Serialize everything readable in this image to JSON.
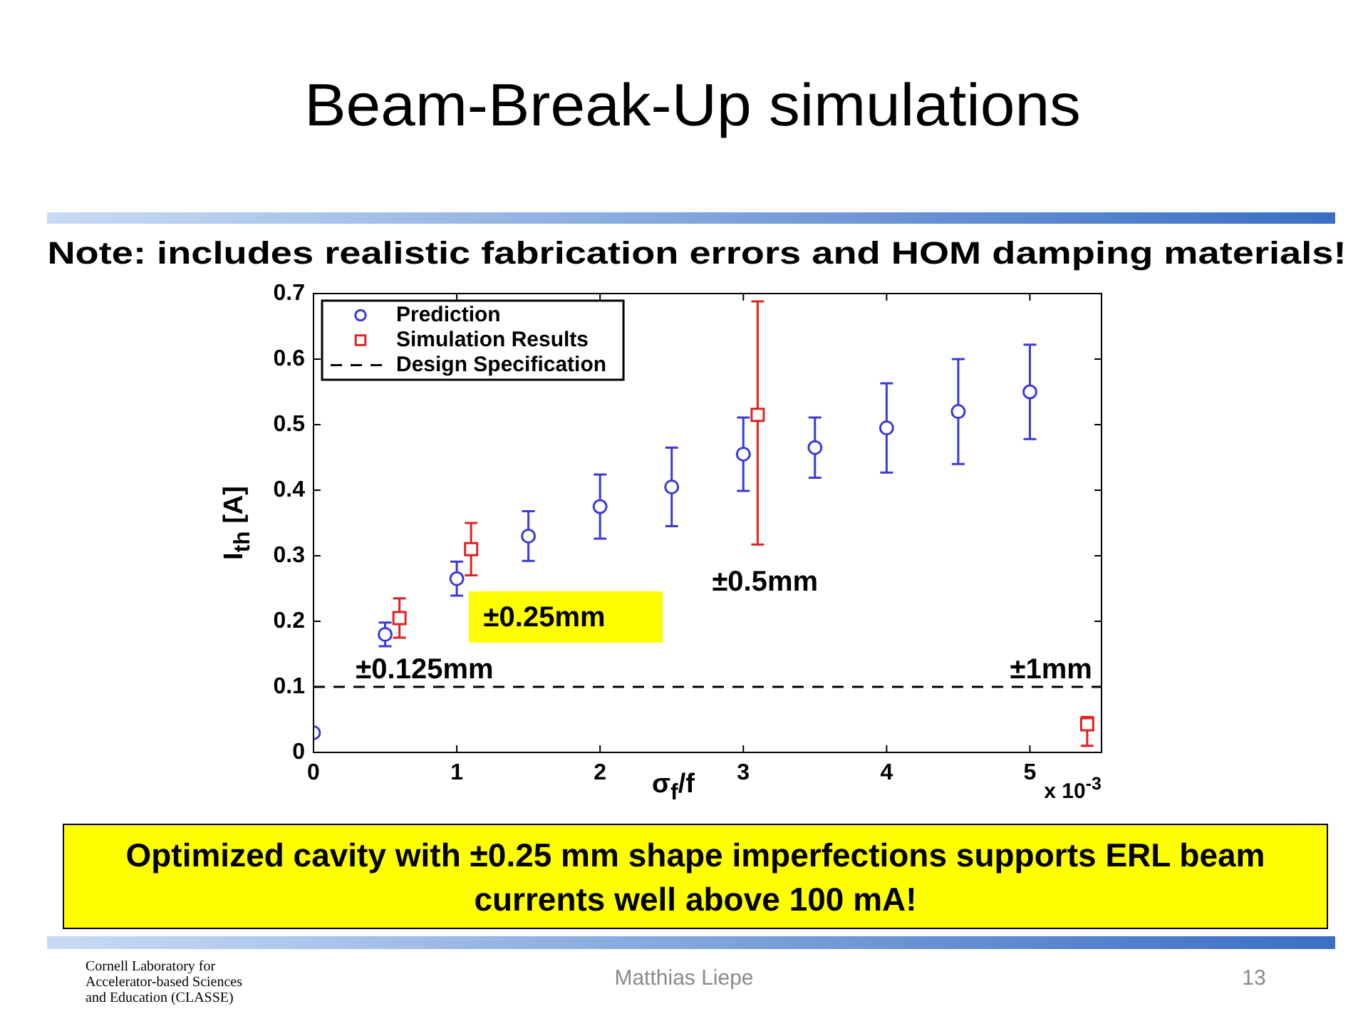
{
  "chart_data": {
    "type": "scatter",
    "title": "Beam-Break-Up simulations",
    "subtitle": "Note: includes realistic fabrication errors and HOM damping materials!",
    "xlabel": "σ$_{f}$/f",
    "ylabel": "I$_{th}$ [A]",
    "xlim": [
      0,
      5.5
    ],
    "ylim": [
      0,
      0.7
    ],
    "xticks": [
      0,
      1,
      2,
      3,
      4,
      5
    ],
    "yticks": [
      0,
      0.1,
      0.2,
      0.3,
      0.4,
      0.5,
      0.6,
      0.7
    ],
    "legend": "top left",
    "series": [
      {
        "name": "Prediction",
        "color": "#3a3ad8",
        "marker": "circle",
        "x": [
          0,
          0.5,
          1,
          1.5,
          2,
          2.5,
          3,
          3.5,
          4,
          4.5,
          5
        ],
        "values": [
          0.03,
          0.18,
          0.265,
          0.33,
          0.375,
          0.405,
          0.455,
          0.465,
          0.495,
          0.52,
          0.55
        ],
        "errors": [
          null,
          0.018,
          0.026,
          0.038,
          0.049,
          0.06,
          0.056,
          0.046,
          0.068,
          0.08,
          0.072
        ]
      },
      {
        "name": "Simulation Results",
        "color": "#e02222",
        "marker": "square",
        "x": [
          0.6,
          1.1,
          3.1,
          5.4
        ],
        "values": [
          0.205,
          0.31,
          0.515,
          0.043
        ],
        "errors": [
          0.03,
          0.04,
          [
            0.317,
            0.688
          ],
          [
            0.01,
            0.054
          ]
        ]
      }
    ],
    "ref_lines": [
      {
        "axis": "y",
        "value": 0.1,
        "label": "Design Specification",
        "color": "#000000",
        "line_style": "dashed"
      }
    ],
    "annotations": [
      "±0.125mm",
      "±0.25mm",
      "±0.5mm",
      "±1mm",
      "x 10$^{-3}$",
      "Optimized cavity with ±0.25 mm shape imperfections supports ERL beam currents well above 100 mA!",
      "Matthias Liepe",
      "13",
      "Cornell Laboratory for Accelerator-based Sciences and Education (CLASSE)"
    ]
  }
}
